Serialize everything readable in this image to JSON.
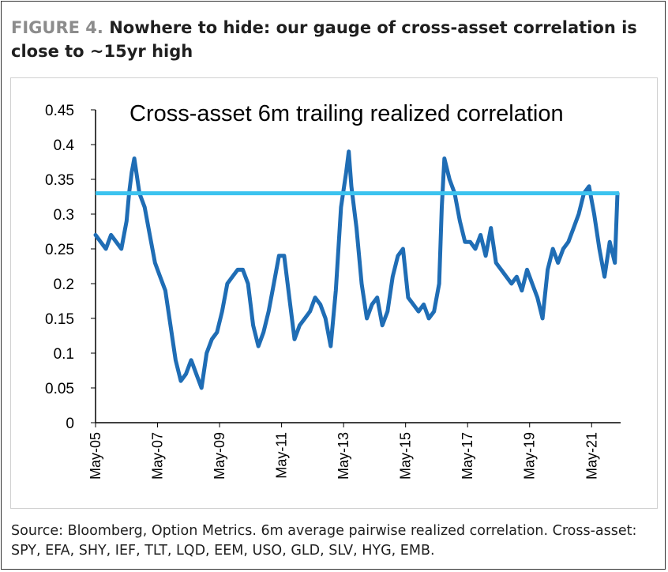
{
  "figure": {
    "label": "FIGURE 4.",
    "title": "Nowhere to hide: our gauge of cross-asset correlation is close to ~15yr high"
  },
  "source_note": "Source: Bloomberg, Option Metrics. 6m average pairwise realized correlation. Cross-asset: SPY, EFA, SHY, IEF, TLT, LQD, EEM, USO, GLD, SLV, HYG, EMB.",
  "colors": {
    "series": "#1f6db5",
    "reference": "#3cc3ef",
    "axis": "#000000"
  },
  "chart_data": {
    "type": "line",
    "title": "Cross-asset 6m trailing realized correlation",
    "xlabel": "",
    "ylabel": "",
    "ylim": [
      0,
      0.45
    ],
    "xlim": [
      "2005-05",
      "2022-03"
    ],
    "x_tick_labels": [
      "May-05",
      "May-07",
      "May-09",
      "May-11",
      "May-13",
      "May-15",
      "May-17",
      "May-19",
      "May-21"
    ],
    "y_tick_labels": [
      "0",
      "0.05",
      "0.1",
      "0.15",
      "0.2",
      "0.25",
      "0.3",
      "0.35",
      "0.4",
      "0.45"
    ],
    "grid": false,
    "reference_line": {
      "y": 0.33
    },
    "series": [
      {
        "x": [
          "2005-05",
          "2005-07",
          "2005-09",
          "2005-11",
          "2006-01",
          "2006-03",
          "2006-05",
          "2006-06",
          "2006-07",
          "2006-08",
          "2006-10",
          "2006-12",
          "2007-02",
          "2007-04",
          "2007-06",
          "2007-08",
          "2007-10",
          "2007-12",
          "2008-02",
          "2008-04",
          "2008-06",
          "2008-08",
          "2008-10",
          "2008-12",
          "2009-02",
          "2009-04",
          "2009-06",
          "2009-08",
          "2009-10",
          "2009-12",
          "2010-02",
          "2010-04",
          "2010-06",
          "2010-08",
          "2010-10",
          "2010-12",
          "2011-02",
          "2011-04",
          "2011-06",
          "2011-08",
          "2011-10",
          "2011-12",
          "2012-02",
          "2012-04",
          "2012-06",
          "2012-08",
          "2012-10",
          "2012-12",
          "2013-02",
          "2013-04",
          "2013-06",
          "2013-07",
          "2013-08",
          "2013-10",
          "2013-12",
          "2014-02",
          "2014-04",
          "2014-06",
          "2014-08",
          "2014-10",
          "2014-12",
          "2015-02",
          "2015-04",
          "2015-06",
          "2015-08",
          "2015-10",
          "2015-12",
          "2016-02",
          "2016-04",
          "2016-06",
          "2016-07",
          "2016-08",
          "2016-10",
          "2016-12",
          "2017-02",
          "2017-04",
          "2017-06",
          "2017-08",
          "2017-10",
          "2017-12",
          "2018-02",
          "2018-04",
          "2018-06",
          "2018-08",
          "2018-10",
          "2018-12",
          "2019-02",
          "2019-04",
          "2019-06",
          "2019-08",
          "2019-10",
          "2019-12",
          "2020-02",
          "2020-04",
          "2020-06",
          "2020-08",
          "2020-10",
          "2020-12",
          "2021-02",
          "2021-04",
          "2021-06",
          "2021-08",
          "2021-10",
          "2021-12",
          "2022-02",
          "2022-03"
        ],
        "y": [
          0.27,
          0.26,
          0.25,
          0.27,
          0.26,
          0.25,
          0.29,
          0.33,
          0.36,
          0.38,
          0.33,
          0.31,
          0.27,
          0.23,
          0.21,
          0.19,
          0.14,
          0.09,
          0.06,
          0.07,
          0.09,
          0.07,
          0.05,
          0.1,
          0.12,
          0.13,
          0.16,
          0.2,
          0.21,
          0.22,
          0.22,
          0.2,
          0.14,
          0.11,
          0.13,
          0.16,
          0.2,
          0.24,
          0.24,
          0.18,
          0.12,
          0.14,
          0.15,
          0.16,
          0.18,
          0.17,
          0.15,
          0.11,
          0.19,
          0.31,
          0.36,
          0.39,
          0.34,
          0.28,
          0.2,
          0.15,
          0.17,
          0.18,
          0.14,
          0.16,
          0.21,
          0.24,
          0.25,
          0.18,
          0.17,
          0.16,
          0.17,
          0.15,
          0.16,
          0.2,
          0.31,
          0.38,
          0.35,
          0.33,
          0.29,
          0.26,
          0.26,
          0.25,
          0.27,
          0.24,
          0.28,
          0.23,
          0.22,
          0.21,
          0.2,
          0.21,
          0.19,
          0.22,
          0.2,
          0.18,
          0.15,
          0.22,
          0.25,
          0.23,
          0.25,
          0.26,
          0.28,
          0.3,
          0.33,
          0.34,
          0.3,
          0.25,
          0.21,
          0.26,
          0.23,
          0.33
        ]
      }
    ]
  }
}
